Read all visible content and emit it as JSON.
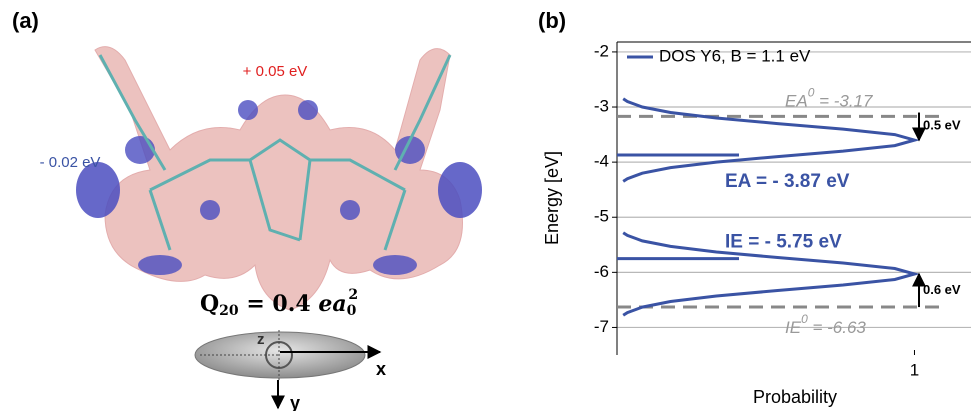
{
  "panel_a": {
    "label": "(a)",
    "annotations": [
      "+ 0.05 eV",
      "- 0.02 eV"
    ],
    "formula": {
      "symbol": "Q",
      "sub": "20",
      "rest": " = 0.4 ",
      "var": "ea",
      "var_sub": "0",
      "var_sup": "2"
    },
    "axes": [
      "z",
      "x",
      "y"
    ]
  },
  "chart_data": {
    "type": "line",
    "panel_label": "(b)",
    "ylabel": "Energy [eV]",
    "xlabel": "Probability",
    "ylim": [
      -7.5,
      -1.82
    ],
    "yticks": [
      -2,
      -3,
      -4,
      -5,
      -6,
      -7
    ],
    "xlim": [
      0,
      1.19
    ],
    "xticks": [
      1
    ],
    "grid": true,
    "legend": "top-left",
    "series": [
      {
        "name": "DOS Y6, B = 1.1 eV",
        "color": "#3a53a4",
        "y": [
          -2.85,
          -2.9,
          -3.0,
          -3.1,
          -3.2,
          -3.3,
          -3.4,
          -3.5,
          -3.6,
          -3.7,
          -3.8,
          -3.9,
          -4.0,
          -4.1,
          -4.2,
          -4.3,
          -4.35,
          null,
          -5.28,
          -5.33,
          -5.43,
          -5.53,
          -5.63,
          -5.73,
          -5.83,
          -5.93,
          -6.03,
          -6.13,
          -6.23,
          -6.33,
          -6.43,
          -6.53,
          -6.63,
          -6.73,
          -6.78
        ],
        "x": [
          0.021,
          0.035,
          0.085,
          0.18,
          0.334,
          0.54,
          0.76,
          0.934,
          1,
          0.934,
          0.76,
          0.54,
          0.334,
          0.18,
          0.085,
          0.035,
          0.021,
          null,
          0.021,
          0.035,
          0.085,
          0.18,
          0.334,
          0.54,
          0.76,
          0.934,
          1,
          0.934,
          0.76,
          0.54,
          0.334,
          0.18,
          0.085,
          0.035,
          0.021
        ]
      }
    ],
    "levels": [
      {
        "value": -3.87,
        "label": "EA = - 3.87 eV"
      },
      {
        "value": -5.75,
        "label": "IE = - 5.75 eV"
      }
    ],
    "reference_lines": [
      {
        "value": -3.17,
        "main": "EA",
        "sup": "0",
        "rest": " = -3.17"
      },
      {
        "value": -6.63,
        "main": "IE",
        "sup": "0",
        "rest": " = -6.63"
      }
    ],
    "arrows": [
      {
        "from": -3.1,
        "to": -3.6,
        "label": "0.5 eV"
      },
      {
        "from": -6.63,
        "to": -6.03,
        "label": "0.6 eV"
      }
    ]
  }
}
